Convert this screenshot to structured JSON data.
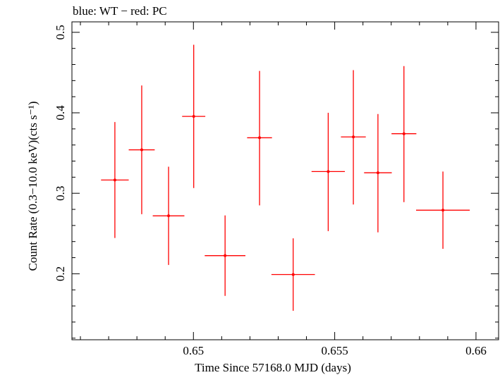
{
  "chart_data": {
    "type": "scatter",
    "title": "blue: WT − red: PC",
    "xlabel": "Time Since 57168.0 MJD (days)",
    "ylabel": "Count Rate (0.3−10.0 keV)(cts s⁻¹)",
    "xlim": [
      0.6457,
      0.6608
    ],
    "ylim": [
      0.118,
      0.513
    ],
    "x_major_ticks": [
      0.65,
      0.655,
      0.66
    ],
    "x_tick_labels": [
      "0.65",
      "0.655",
      "0.66"
    ],
    "x_minor_step": 0.001,
    "y_major_ticks": [
      0.2,
      0.3,
      0.4,
      0.5
    ],
    "y_tick_labels": [
      "0.2",
      "0.3",
      "0.4",
      "0.5"
    ],
    "y_minor_step": 0.02,
    "grid": false,
    "series": [
      {
        "name": "PC",
        "color": "#ff0000",
        "points": [
          {
            "x": 0.64722,
            "y": 0.3165,
            "xerr": 0.00049,
            "yerr_low": 0.072,
            "yerr_high": 0.072
          },
          {
            "x": 0.64817,
            "y": 0.354,
            "xerr": 0.00046,
            "yerr_low": 0.08,
            "yerr_high": 0.08
          },
          {
            "x": 0.64912,
            "y": 0.272,
            "xerr": 0.00056,
            "yerr_low": 0.061,
            "yerr_high": 0.061
          },
          {
            "x": 0.65001,
            "y": 0.3955,
            "xerr": 0.00041,
            "yerr_low": 0.089,
            "yerr_high": 0.089
          },
          {
            "x": 0.65112,
            "y": 0.2225,
            "xerr": 0.00072,
            "yerr_low": 0.05,
            "yerr_high": 0.05
          },
          {
            "x": 0.65234,
            "y": 0.369,
            "xerr": 0.00044,
            "yerr_low": 0.084,
            "yerr_high": 0.083
          },
          {
            "x": 0.65353,
            "y": 0.199,
            "xerr": 0.00077,
            "yerr_low": 0.045,
            "yerr_high": 0.045
          },
          {
            "x": 0.65477,
            "y": 0.327,
            "xerr": 0.00059,
            "yerr_low": 0.074,
            "yerr_high": 0.073
          },
          {
            "x": 0.65566,
            "y": 0.37,
            "xerr": 0.00044,
            "yerr_low": 0.084,
            "yerr_high": 0.083
          },
          {
            "x": 0.65653,
            "y": 0.3255,
            "xerr": 0.00049,
            "yerr_low": 0.074,
            "yerr_high": 0.073
          },
          {
            "x": 0.65745,
            "y": 0.374,
            "xerr": 0.00044,
            "yerr_low": 0.085,
            "yerr_high": 0.084
          },
          {
            "x": 0.65883,
            "y": 0.279,
            "xerr": 0.00095,
            "yerr_low": 0.048,
            "yerr_high": 0.048
          }
        ]
      }
    ]
  }
}
